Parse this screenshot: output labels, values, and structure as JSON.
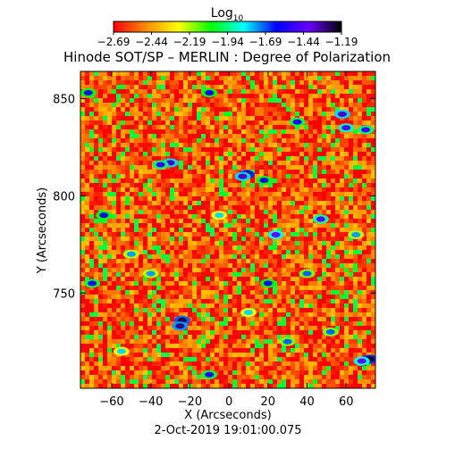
{
  "chart_data": {
    "type": "heatmap",
    "title": "Hinode SOT/SP – MERLIN : Degree of Polarization",
    "xlabel": "X (Arcseconds)",
    "ylabel": "Y (Arcseconds)",
    "xlim": [
      -76,
      75
    ],
    "ylim": [
      701,
      864
    ],
    "x_ticks": [
      -60,
      -40,
      -20,
      0,
      20,
      40,
      60
    ],
    "x_tick_labels": [
      "−60",
      "−40",
      "−20",
      "0",
      "20",
      "40",
      "60"
    ],
    "y_ticks": [
      750,
      800,
      850
    ],
    "y_tick_labels": [
      "750",
      "800",
      "850"
    ],
    "colorbar": {
      "label_base": "Log",
      "label_sub": "10",
      "range": [
        -2.69,
        -1.19
      ],
      "ticks": [
        -2.69,
        -2.44,
        -2.19,
        -1.94,
        -1.69,
        -1.44,
        -1.19
      ],
      "tick_labels": [
        "−2.69",
        "−2.44",
        "−2.19",
        "−1.94",
        "−1.69",
        "−1.44",
        "−1.19"
      ],
      "colormap": "rainbow",
      "colors": [
        "#ff0000",
        "#ff8c00",
        "#ffff00",
        "#00ff00",
        "#00ffff",
        "#0000ff",
        "#6a00ff",
        "#000000"
      ]
    },
    "background_level": -2.55,
    "features": [
      {
        "x": 9,
        "y": 811,
        "level": -1.2
      },
      {
        "x": 7,
        "y": 810,
        "level": -1.35
      },
      {
        "x": -24,
        "y": 736,
        "level": -1.25
      },
      {
        "x": -25,
        "y": 733,
        "level": -1.3
      },
      {
        "x": 72,
        "y": 716,
        "level": -1.2
      },
      {
        "x": 68,
        "y": 715,
        "level": -1.4
      },
      {
        "x": -30,
        "y": 817,
        "level": -1.35
      },
      {
        "x": -35,
        "y": 816,
        "level": -1.5
      },
      {
        "x": 58,
        "y": 842,
        "level": -1.35
      },
      {
        "x": 60,
        "y": 835,
        "level": -1.45
      },
      {
        "x": 70,
        "y": 834,
        "level": -1.5
      },
      {
        "x": 24,
        "y": 780,
        "level": -1.4
      },
      {
        "x": 47,
        "y": 788,
        "level": -1.45
      },
      {
        "x": 18,
        "y": 808,
        "level": -1.6
      },
      {
        "x": 35,
        "y": 838,
        "level": -1.55
      },
      {
        "x": -10,
        "y": 853,
        "level": -1.6
      },
      {
        "x": -70,
        "y": 755,
        "level": -1.55
      },
      {
        "x": -64,
        "y": 790,
        "level": -1.6
      },
      {
        "x": -72,
        "y": 853,
        "level": -1.6
      },
      {
        "x": 20,
        "y": 755,
        "level": -1.6
      },
      {
        "x": -10,
        "y": 708,
        "level": -1.55
      },
      {
        "x": 40,
        "y": 760,
        "level": -1.7
      },
      {
        "x": 52,
        "y": 730,
        "level": -1.7
      },
      {
        "x": -50,
        "y": 770,
        "level": -1.75
      },
      {
        "x": 30,
        "y": 725,
        "level": -1.7
      },
      {
        "x": -40,
        "y": 760,
        "level": -1.75
      },
      {
        "x": 10,
        "y": 740,
        "level": -1.8
      },
      {
        "x": -55,
        "y": 720,
        "level": -1.8
      },
      {
        "x": 65,
        "y": 780,
        "level": -1.75
      },
      {
        "x": -5,
        "y": 790,
        "level": -1.8
      }
    ],
    "footer_date": "2-Oct-2019 19:01:00.075"
  }
}
